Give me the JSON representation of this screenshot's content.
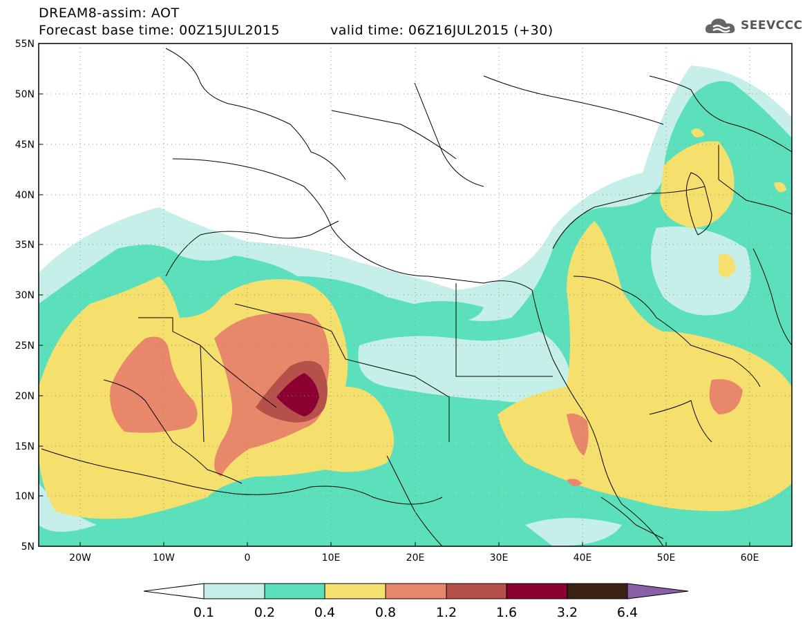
{
  "header": {
    "title": "DREAM8-assim: AOT",
    "base_time": "Forecast base time: 00Z15JUL2015",
    "valid_time": "valid time: 06Z16JUL2015 (+30)"
  },
  "logo": {
    "text": "SEEVCCC",
    "icon": "cloud-icon"
  },
  "map": {
    "lat_labels": [
      "55N",
      "50N",
      "45N",
      "40N",
      "35N",
      "30N",
      "25N",
      "20N",
      "15N",
      "10N",
      "5N"
    ],
    "lon_labels": [
      "20W",
      "10W",
      "0",
      "10E",
      "20E",
      "30E",
      "40E",
      "50E",
      "60E"
    ],
    "lon_range": [
      -25,
      65
    ],
    "lat_range": [
      5,
      55
    ],
    "gridlines": true
  },
  "colorbar": {
    "levels": [
      "0.1",
      "0.2",
      "0.4",
      "0.8",
      "1.2",
      "1.6",
      "3.2",
      "6.4"
    ],
    "colors": [
      "#ffffff",
      "#c6efea",
      "#5be0bb",
      "#f5e06e",
      "#e8876a",
      "#b5514a",
      "#8b0030",
      "#3b2314",
      "#8a5fa8"
    ]
  }
}
